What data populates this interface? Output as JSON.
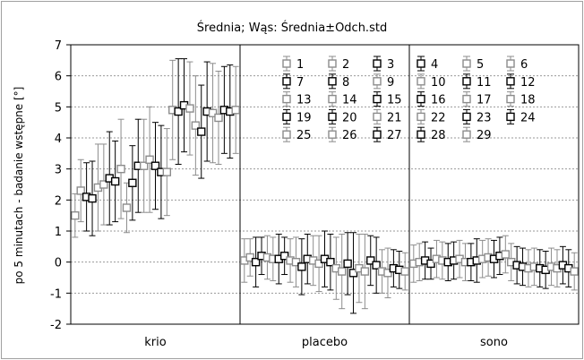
{
  "chart_data": {
    "type": "scatter",
    "title": "Średnia; Wąs: Średnia±Odch.std",
    "xlabel": "",
    "ylabel": "po 5 minutach - badanie wstępne [°]",
    "categories": [
      "krio",
      "placebo",
      "sono"
    ],
    "ylim": [
      -2,
      7
    ],
    "yticks": [
      -2,
      -1,
      0,
      1,
      2,
      3,
      4,
      5,
      6,
      7
    ],
    "grid": true,
    "legend_position": "top-right",
    "series_colors": {
      "gray": "#8c8c8c",
      "black": "#000000"
    },
    "legend": [
      "1",
      "2",
      "3",
      "4",
      "5",
      "6",
      "7",
      "8",
      "9",
      "10",
      "11",
      "12",
      "13",
      "14",
      "15",
      "16",
      "17",
      "18",
      "19",
      "20",
      "21",
      "22",
      "23",
      "24",
      "25",
      "26",
      "27",
      "28",
      "29"
    ],
    "series_style": [
      "gray",
      "gray",
      "black",
      "black",
      "gray",
      "gray",
      "black",
      "black",
      "gray",
      "gray",
      "black",
      "black",
      "gray",
      "gray",
      "black",
      "black",
      "gray",
      "gray",
      "black",
      "black",
      "gray",
      "gray",
      "black",
      "black",
      "gray",
      "gray",
      "black",
      "black",
      "gray"
    ],
    "series": [
      {
        "name": "krio",
        "mean": [
          1.5,
          2.3,
          2.1,
          2.05,
          2.4,
          2.5,
          2.7,
          2.6,
          3.0,
          1.75,
          2.55,
          3.1,
          3.1,
          3.3,
          3.1,
          2.9,
          2.9,
          4.9,
          4.85,
          5.05,
          4.95,
          4.4,
          4.2,
          4.85,
          4.8,
          4.65,
          4.9,
          4.85,
          4.9
        ],
        "std": [
          0.7,
          1.0,
          1.1,
          1.2,
          1.4,
          1.3,
          1.5,
          1.3,
          1.6,
          0.8,
          1.2,
          1.5,
          1.5,
          1.7,
          1.4,
          1.5,
          1.4,
          1.6,
          1.7,
          1.5,
          1.5,
          1.6,
          1.5,
          1.6,
          1.6,
          1.5,
          1.4,
          1.5,
          1.4
        ]
      },
      {
        "name": "placebo",
        "mean": [
          0.05,
          0.15,
          0.0,
          0.2,
          0.15,
          0.1,
          0.1,
          0.2,
          0.05,
          0.0,
          -0.15,
          0.1,
          0.05,
          -0.05,
          0.1,
          0.0,
          -0.2,
          -0.3,
          -0.05,
          -0.35,
          -0.2,
          -0.3,
          0.05,
          -0.1,
          -0.3,
          -0.35,
          -0.2,
          -0.25,
          -0.3
        ],
        "std": [
          0.7,
          0.6,
          0.8,
          0.6,
          0.7,
          0.7,
          0.8,
          0.6,
          0.7,
          0.8,
          0.9,
          0.8,
          0.8,
          0.9,
          0.9,
          0.9,
          1.0,
          1.2,
          1.0,
          1.3,
          1.1,
          1.2,
          0.8,
          0.9,
          0.7,
          0.8,
          0.6,
          0.6,
          0.6
        ]
      },
      {
        "name": "sono",
        "mean": [
          -0.05,
          0.0,
          0.05,
          -0.05,
          0.1,
          0.05,
          0.0,
          0.05,
          0.1,
          0.0,
          0.0,
          0.05,
          0.1,
          0.15,
          0.1,
          0.2,
          0.25,
          0.0,
          -0.1,
          -0.15,
          -0.2,
          -0.15,
          -0.2,
          -0.25,
          -0.15,
          -0.2,
          -0.1,
          -0.2,
          -0.3
        ],
        "std": [
          0.6,
          0.6,
          0.6,
          0.5,
          0.6,
          0.6,
          0.6,
          0.6,
          0.6,
          0.6,
          0.6,
          0.7,
          0.6,
          0.6,
          0.6,
          0.6,
          0.6,
          0.6,
          0.6,
          0.6,
          0.6,
          0.6,
          0.6,
          0.6,
          0.6,
          0.6,
          0.6,
          0.6,
          0.6
        ]
      }
    ]
  }
}
